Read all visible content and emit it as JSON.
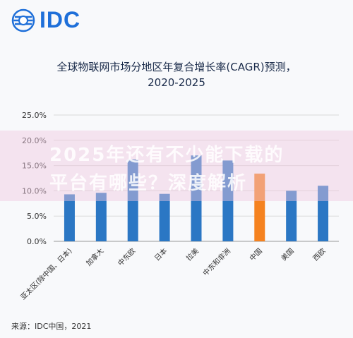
{
  "logo": {
    "text": "IDC",
    "icon": "idc-globe-icon"
  },
  "chart_data": {
    "type": "bar",
    "title": "全球物联网市场分地区年复合增长率(CAGR)预测，",
    "subtitle": "2020-2025",
    "categories": [
      "亚太区(除中国、日本)",
      "加拿大",
      "中东欧",
      "日本",
      "拉美",
      "中东和非洲",
      "中国",
      "美国",
      "西欧"
    ],
    "values": [
      9.3,
      9.6,
      16.2,
      9.4,
      17.0,
      16.0,
      13.4,
      10.0,
      11.0
    ],
    "highlight_index": 6,
    "colors": {
      "bar": "#2b77c4",
      "highlight": "#f5821f"
    },
    "yticks": [
      "0.0%",
      "5.0%",
      "10.0%",
      "15.0%",
      "20.0%",
      "25.0%"
    ],
    "ylim": [
      0,
      25
    ],
    "grid": true
  },
  "watermark": {
    "line1": "2025年还有不少能下载的",
    "line2": "平台有哪些？深度解析"
  },
  "source": "来源：IDC中国，2021"
}
